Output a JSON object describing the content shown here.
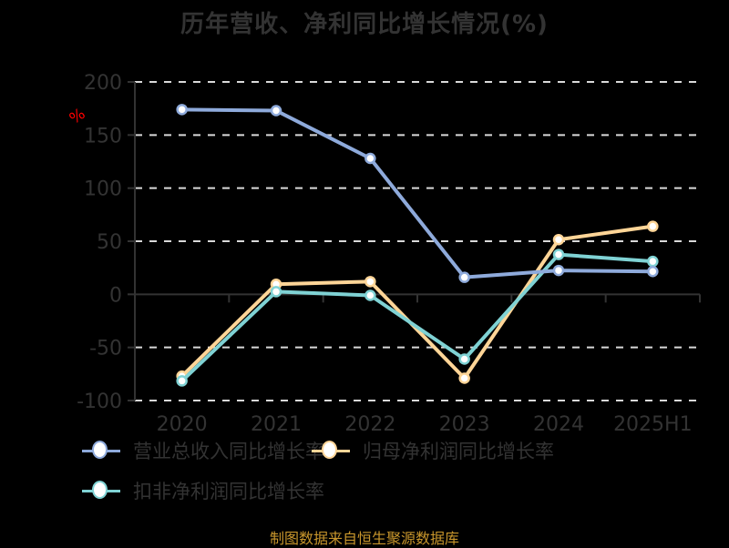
{
  "title": "历年营收、净利同比增长情况(%)",
  "unit_label": "%",
  "source": "制图数据来自恒生聚源数据库",
  "colors": {
    "revenue": "#8eaadb",
    "net_profit": "#ffd597",
    "deducted_net_profit": "#7fd2d4",
    "axis_text": "#333333",
    "grid": "#d9d9d9",
    "unit": "#ff0000",
    "source": "#c8962c"
  },
  "legend": [
    {
      "label": "营业总收入同比增长率",
      "color": "#8eaadb"
    },
    {
      "label": "归母净利润同比增长率",
      "color": "#ffd597"
    },
    {
      "label": "扣非净利润同比增长率",
      "color": "#7fd2d4"
    }
  ],
  "chart_data": {
    "type": "line",
    "title": "历年营收、净利同比增长情况(%)",
    "xlabel": "",
    "ylabel": "%",
    "categories": [
      "2020",
      "2021",
      "2022",
      "2023",
      "2024",
      "2025H1"
    ],
    "yticks": [
      "200",
      "150",
      "100",
      "50",
      "0",
      "-50",
      "-100"
    ],
    "ylim": [
      -100,
      200
    ],
    "grid": true,
    "legend_position": "bottom",
    "series": [
      {
        "name": "营业总收入同比增长率",
        "values": [
          174.0,
          173.0,
          128.0,
          16.0,
          22.5,
          21.5
        ]
      },
      {
        "name": "归母净利润同比增长率",
        "values": [
          -77.0,
          9.5,
          12.0,
          -79.0,
          51.5,
          64.0
        ]
      },
      {
        "name": "扣非净利润同比增长率",
        "values": [
          -81.5,
          2.5,
          -1.0,
          -61.0,
          37.5,
          31.0
        ]
      }
    ]
  }
}
